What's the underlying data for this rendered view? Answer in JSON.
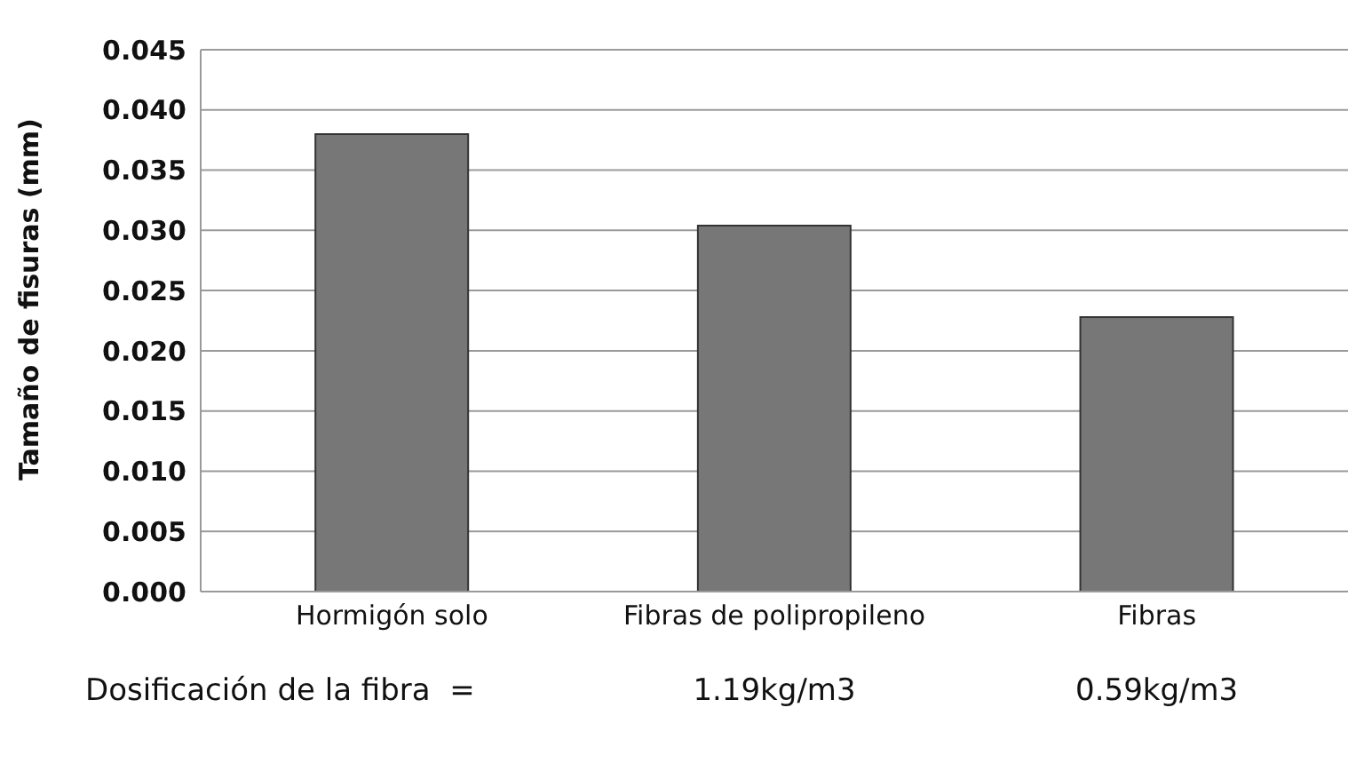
{
  "chart_data": {
    "type": "bar",
    "ylabel": "Tamaño de fisuras (mm)",
    "categories": [
      "Hormigón solo",
      "Fibras de polipropileno",
      "Fibras"
    ],
    "values": [
      0.038,
      0.0304,
      0.0228
    ],
    "color": "#777777",
    "ylim": [
      0,
      0.045
    ],
    "yticks": [
      {
        "value": 0,
        "label": "0.000"
      },
      {
        "value": 0.005,
        "label": "0.005"
      },
      {
        "value": 0.01,
        "label": "0.010"
      },
      {
        "value": 0.015,
        "label": "0.015"
      },
      {
        "value": 0.02,
        "label": "0.020"
      },
      {
        "value": 0.025,
        "label": "0.025"
      },
      {
        "value": 0.03,
        "label": "0.030"
      },
      {
        "value": 0.035,
        "label": "0.035"
      },
      {
        "value": 0.04,
        "label": "0.040"
      },
      {
        "value": 0.045,
        "label": "0.045"
      }
    ],
    "grid": "y",
    "annotations": [
      "Dosificación de la fibra  =",
      "1.19kg/m3",
      "0.59kg/m3"
    ]
  }
}
